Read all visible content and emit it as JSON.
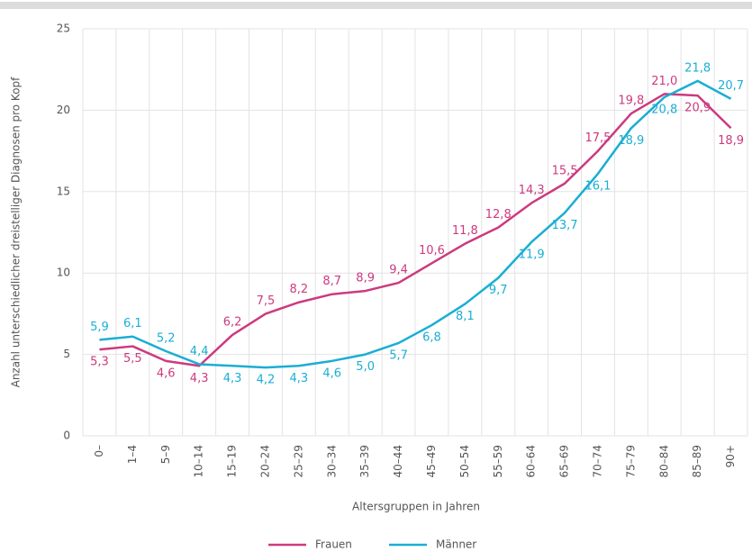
{
  "chart_data": {
    "type": "line",
    "y_label": "Anzahl unterschiedlicher dreistelliger Diagnosen pro Kopf",
    "x_label": "Altersgruppen in Jahren",
    "categories": [
      "0–",
      "1–4",
      "5–9",
      "10–14",
      "15–19",
      "20–24",
      "25–29",
      "30–34",
      "35–39",
      "40–44",
      "45–49",
      "50–54",
      "55–59",
      "60–64",
      "65–69",
      "70–74",
      "75–79",
      "80–84",
      "85–89",
      "90+"
    ],
    "series": [
      {
        "name": "Frauen",
        "color": "#cc3a7f",
        "values": [
          5.3,
          5.5,
          4.6,
          4.3,
          6.2,
          7.5,
          8.2,
          8.7,
          8.9,
          9.4,
          10.6,
          11.8,
          12.8,
          14.3,
          15.5,
          17.5,
          19.8,
          21.0,
          20.9,
          18.9
        ],
        "value_labels": [
          "5,3",
          "5,5",
          "4,6",
          "4,3",
          "6,2",
          "7,5",
          "8,2",
          "8,7",
          "8,9",
          "9,4",
          "10,6",
          "11,8",
          "12,8",
          "14,3",
          "15,5",
          "17,5",
          "19,8",
          "21,0",
          "20,9",
          "18,9"
        ]
      },
      {
        "name": "Männer",
        "color": "#1aaed4",
        "values": [
          5.9,
          6.1,
          5.2,
          4.4,
          4.3,
          4.2,
          4.3,
          4.6,
          5.0,
          5.7,
          6.8,
          8.1,
          9.7,
          11.9,
          13.7,
          16.1,
          18.9,
          20.8,
          21.8,
          20.7
        ],
        "value_labels": [
          "5,9",
          "6,1",
          "5,2",
          "4,4",
          "4,3",
          "4,2",
          "4,3",
          "4,6",
          "5,0",
          "5,7",
          "6,8",
          "8,1",
          "9,7",
          "11,9",
          "13,7",
          "16,1",
          "18,9",
          "20,8",
          "21,8",
          "20,7"
        ]
      }
    ],
    "ylim": [
      0,
      25
    ],
    "yticks": [
      0,
      5,
      10,
      15,
      20,
      25
    ],
    "grid": true,
    "legend": "bottom"
  }
}
